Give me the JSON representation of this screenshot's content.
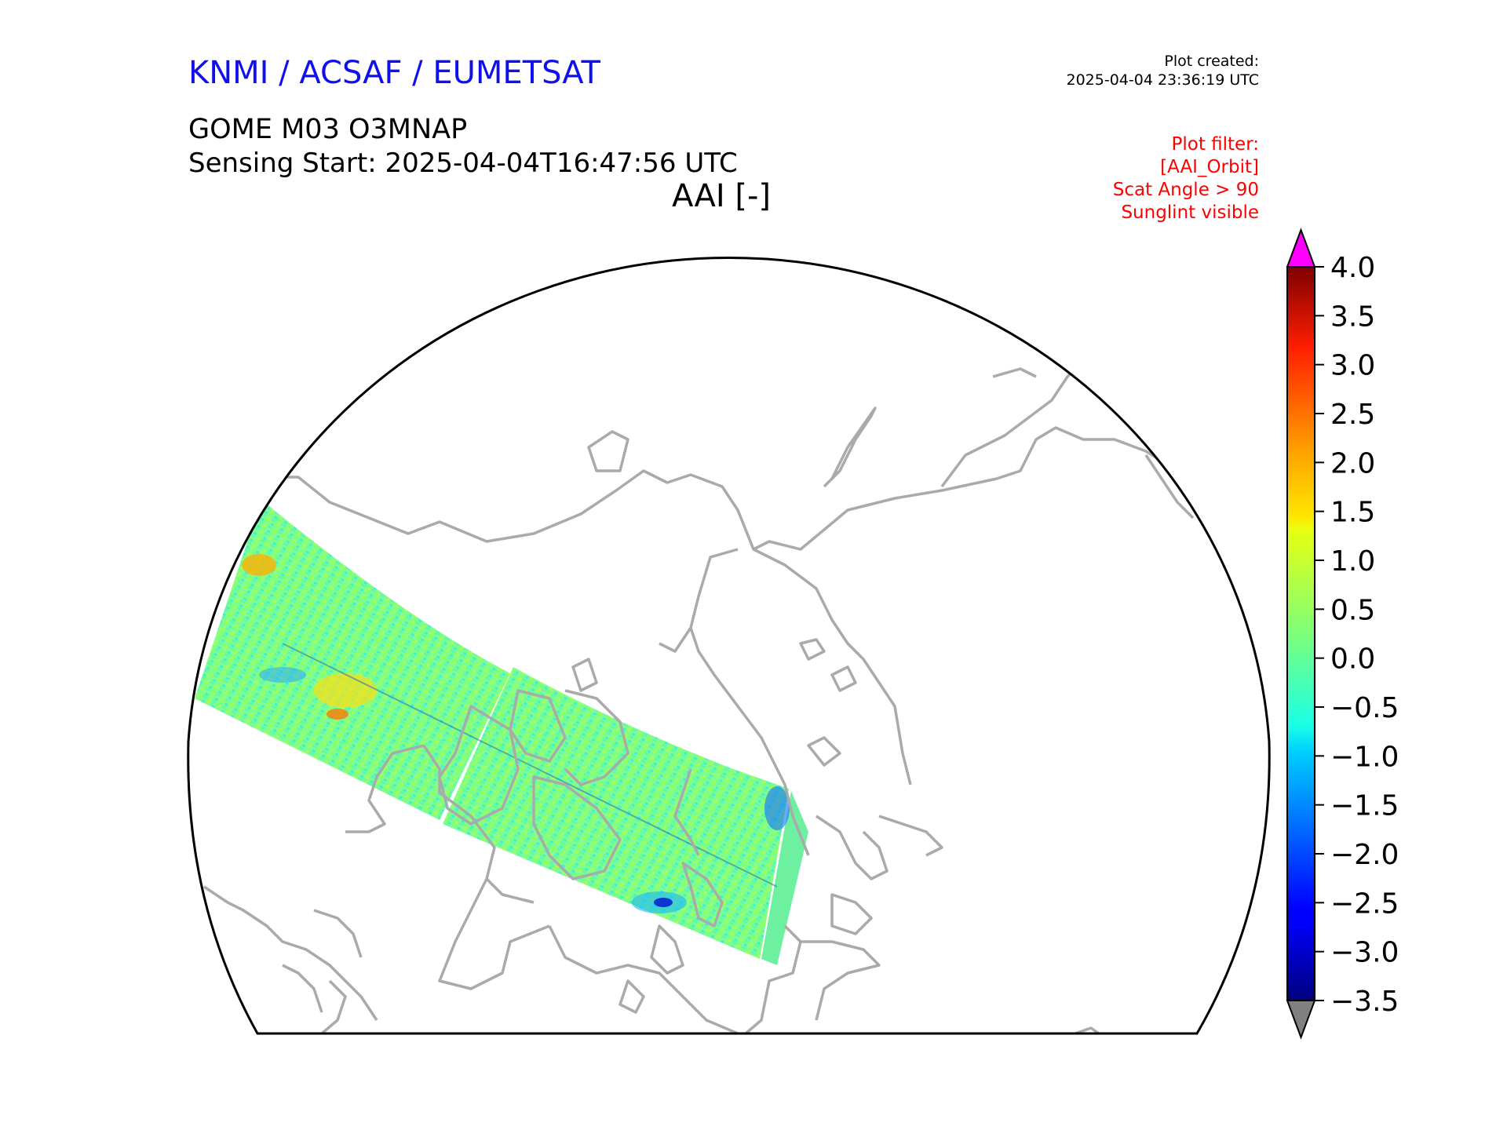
{
  "header": {
    "organization": "KNMI / ACSAF / EUMETSAT",
    "organization_color": "#1010ee",
    "product": "GOME M03 O3MNAP",
    "sensing_start": "Sensing Start: 2025-04-04T16:47:56 UTC",
    "quantity_title": "AAI [-]"
  },
  "plot_created": {
    "label": "Plot created:",
    "timestamp": "2025-04-04 23:36:19 UTC"
  },
  "plot_filter": {
    "color": "#ff0000",
    "lines": [
      "Plot filter:",
      "[AAI_Orbit]",
      "Scat Angle > 90",
      "Sunglint visible"
    ]
  },
  "colorbar": {
    "colormap": "jet",
    "min": -3.5,
    "max": 4.0,
    "over_color": "#ff00ff",
    "under_color": "#808080",
    "tick_labels": [
      "4.0",
      "3.5",
      "3.0",
      "2.5",
      "2.0",
      "1.5",
      "1.0",
      "0.5",
      "0.0",
      "−0.5",
      "−1.0",
      "−1.5",
      "−2.0",
      "−2.5",
      "−3.0",
      "−3.5"
    ]
  },
  "map": {
    "projection": "north-polar-stereographic",
    "coastline_color": "#aaaaaa",
    "swath_typical_value": 0.0
  }
}
